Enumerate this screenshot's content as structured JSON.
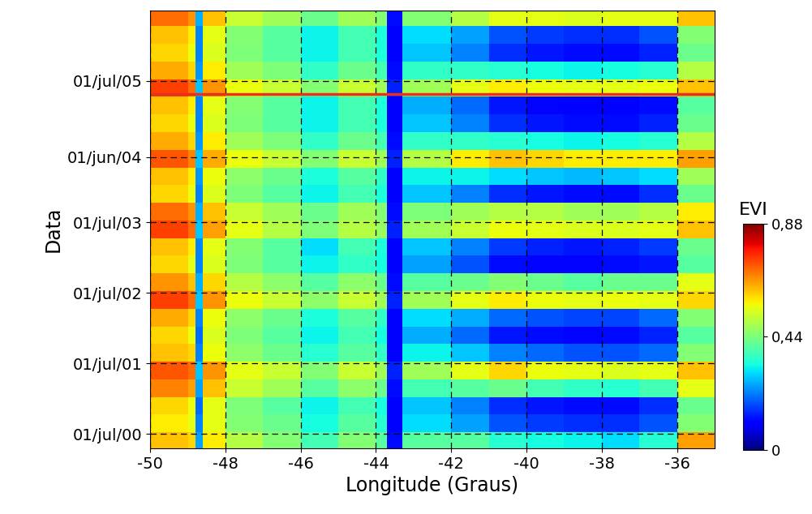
{
  "chart_data": {
    "type": "heatmap",
    "x_label": "Longitude (Graus)",
    "y_label": "Data",
    "xlim": [
      -50,
      -35
    ],
    "xticks": [
      -50,
      -48,
      -46,
      -44,
      -42,
      -40,
      -38,
      -36
    ],
    "ylim": [
      2000.3,
      2006.5
    ],
    "yticks": [
      {
        "value": 2000.5,
        "label": "01/jul/00"
      },
      {
        "value": 2001.5,
        "label": "01/jul/01"
      },
      {
        "value": 2002.5,
        "label": "01/jul/02"
      },
      {
        "value": 2003.5,
        "label": "01/jul/03"
      },
      {
        "value": 2004.42,
        "label": "01/jun/04"
      },
      {
        "value": 2005.5,
        "label": "01/jul/05"
      }
    ],
    "grid": true,
    "x_edges": [
      -50,
      -49,
      -48.8,
      -48.6,
      -48,
      -47,
      -46,
      -45,
      -44,
      -43.7,
      -43.3,
      -42,
      -41,
      -40,
      -39,
      -38,
      -37,
      -36,
      -35
    ],
    "y_edges": [
      2000.275,
      2000.525,
      2000.775,
      2001.025,
      2001.275,
      2001.525,
      2001.775,
      2002.025,
      2002.275,
      2002.525,
      2002.775,
      2003.025,
      2003.275,
      2003.525,
      2003.775,
      2004.025,
      2004.275,
      2004.525,
      2004.775,
      2005.025,
      2005.275,
      2005.525,
      2005.775,
      2006.025,
      2006.275,
      2006.525
    ],
    "cells": [
      [
        0.62,
        0.6,
        0.25,
        0.58,
        0.5,
        0.45,
        0.38,
        0.45,
        0.4,
        0.12,
        0.4,
        0.4,
        0.35,
        0.33,
        0.32,
        0.3,
        0.35,
        0.65
      ],
      [
        0.58,
        0.55,
        0.22,
        0.55,
        0.45,
        0.42,
        0.33,
        0.4,
        0.35,
        0.1,
        0.3,
        0.25,
        0.18,
        0.16,
        0.15,
        0.15,
        0.18,
        0.45
      ],
      [
        0.6,
        0.56,
        0.2,
        0.55,
        0.44,
        0.4,
        0.32,
        0.38,
        0.33,
        0.1,
        0.28,
        0.22,
        0.15,
        0.13,
        0.12,
        0.12,
        0.15,
        0.42
      ],
      [
        0.68,
        0.65,
        0.25,
        0.62,
        0.52,
        0.48,
        0.4,
        0.46,
        0.42,
        0.12,
        0.38,
        0.4,
        0.42,
        0.38,
        0.36,
        0.35,
        0.38,
        0.55
      ],
      [
        0.72,
        0.7,
        0.28,
        0.66,
        0.55,
        0.52,
        0.45,
        0.52,
        0.48,
        0.14,
        0.48,
        0.55,
        0.6,
        0.56,
        0.55,
        0.54,
        0.55,
        0.62
      ],
      [
        0.62,
        0.6,
        0.22,
        0.56,
        0.46,
        0.42,
        0.35,
        0.4,
        0.36,
        0.1,
        0.32,
        0.28,
        0.22,
        0.2,
        0.18,
        0.18,
        0.2,
        0.45
      ],
      [
        0.6,
        0.56,
        0.2,
        0.54,
        0.44,
        0.4,
        0.32,
        0.38,
        0.33,
        0.1,
        0.26,
        0.2,
        0.13,
        0.12,
        0.11,
        0.12,
        0.14,
        0.4
      ],
      [
        0.64,
        0.6,
        0.22,
        0.56,
        0.46,
        0.42,
        0.34,
        0.4,
        0.36,
        0.1,
        0.3,
        0.26,
        0.2,
        0.18,
        0.17,
        0.17,
        0.2,
        0.45
      ],
      [
        0.74,
        0.7,
        0.28,
        0.66,
        0.56,
        0.52,
        0.46,
        0.52,
        0.48,
        0.14,
        0.48,
        0.55,
        0.58,
        0.56,
        0.55,
        0.56,
        0.55,
        0.6
      ],
      [
        0.66,
        0.62,
        0.26,
        0.6,
        0.5,
        0.46,
        0.4,
        0.46,
        0.42,
        0.12,
        0.4,
        0.42,
        0.45,
        0.42,
        0.4,
        0.42,
        0.42,
        0.55
      ],
      [
        0.6,
        0.55,
        0.22,
        0.54,
        0.44,
        0.4,
        0.32,
        0.36,
        0.33,
        0.1,
        0.25,
        0.18,
        0.12,
        0.11,
        0.11,
        0.12,
        0.13,
        0.4
      ],
      [
        0.62,
        0.58,
        0.22,
        0.55,
        0.45,
        0.4,
        0.3,
        0.38,
        0.34,
        0.1,
        0.28,
        0.22,
        0.16,
        0.14,
        0.13,
        0.14,
        0.16,
        0.42
      ],
      [
        0.74,
        0.7,
        0.28,
        0.65,
        0.55,
        0.5,
        0.44,
        0.5,
        0.47,
        0.14,
        0.48,
        0.52,
        0.56,
        0.55,
        0.54,
        0.54,
        0.55,
        0.62
      ],
      [
        0.7,
        0.66,
        0.26,
        0.62,
        0.52,
        0.48,
        0.42,
        0.48,
        0.45,
        0.12,
        0.44,
        0.48,
        0.5,
        0.5,
        0.48,
        0.48,
        0.5,
        0.58
      ],
      [
        0.6,
        0.56,
        0.22,
        0.54,
        0.44,
        0.4,
        0.32,
        0.38,
        0.34,
        0.1,
        0.28,
        0.22,
        0.15,
        0.13,
        0.12,
        0.12,
        0.15,
        0.42
      ],
      [
        0.62,
        0.58,
        0.24,
        0.56,
        0.46,
        0.42,
        0.34,
        0.4,
        0.36,
        0.1,
        0.32,
        0.32,
        0.3,
        0.28,
        0.27,
        0.28,
        0.3,
        0.48
      ],
      [
        0.72,
        0.68,
        0.28,
        0.64,
        0.56,
        0.52,
        0.45,
        0.52,
        0.48,
        0.14,
        0.5,
        0.58,
        0.62,
        0.6,
        0.58,
        0.58,
        0.58,
        0.65
      ],
      [
        0.64,
        0.6,
        0.24,
        0.58,
        0.48,
        0.44,
        0.36,
        0.42,
        0.38,
        0.12,
        0.36,
        0.36,
        0.35,
        0.33,
        0.32,
        0.33,
        0.35,
        0.5
      ],
      [
        0.6,
        0.56,
        0.22,
        0.54,
        0.44,
        0.4,
        0.32,
        0.38,
        0.34,
        0.1,
        0.28,
        0.22,
        0.15,
        0.13,
        0.12,
        0.12,
        0.14,
        0.42
      ],
      [
        0.62,
        0.58,
        0.22,
        0.55,
        0.45,
        0.4,
        0.32,
        0.38,
        0.34,
        0.1,
        0.26,
        0.2,
        0.13,
        0.11,
        0.1,
        0.1,
        0.12,
        0.4
      ],
      [
        0.74,
        0.7,
        0.28,
        0.66,
        0.56,
        0.52,
        0.45,
        0.52,
        0.48,
        0.14,
        0.48,
        0.55,
        0.58,
        0.56,
        0.55,
        0.55,
        0.56,
        0.62
      ],
      [
        0.64,
        0.6,
        0.24,
        0.58,
        0.48,
        0.44,
        0.36,
        0.42,
        0.38,
        0.12,
        0.36,
        0.36,
        0.35,
        0.33,
        0.32,
        0.33,
        0.35,
        0.5
      ],
      [
        0.6,
        0.56,
        0.22,
        0.54,
        0.44,
        0.4,
        0.32,
        0.38,
        0.34,
        0.1,
        0.28,
        0.22,
        0.15,
        0.13,
        0.12,
        0.12,
        0.14,
        0.42
      ],
      [
        0.62,
        0.58,
        0.22,
        0.55,
        0.45,
        0.4,
        0.32,
        0.38,
        0.34,
        0.1,
        0.3,
        0.25,
        0.18,
        0.16,
        0.15,
        0.15,
        0.18,
        0.45
      ],
      [
        0.7,
        0.66,
        0.26,
        0.62,
        0.52,
        0.48,
        0.42,
        0.48,
        0.45,
        0.12,
        0.45,
        0.5,
        0.55,
        0.55,
        0.54,
        0.55,
        0.55,
        0.62
      ]
    ],
    "colorbar": {
      "title": "EVI",
      "range": [
        0,
        0.88
      ],
      "ticks": [
        0,
        {
          "value": 0.44,
          "label": "0,44"
        },
        {
          "value": 0.88,
          "label": "0,88"
        }
      ]
    },
    "reference_line": {
      "y": 2005.31,
      "color": "#e8301c"
    }
  }
}
